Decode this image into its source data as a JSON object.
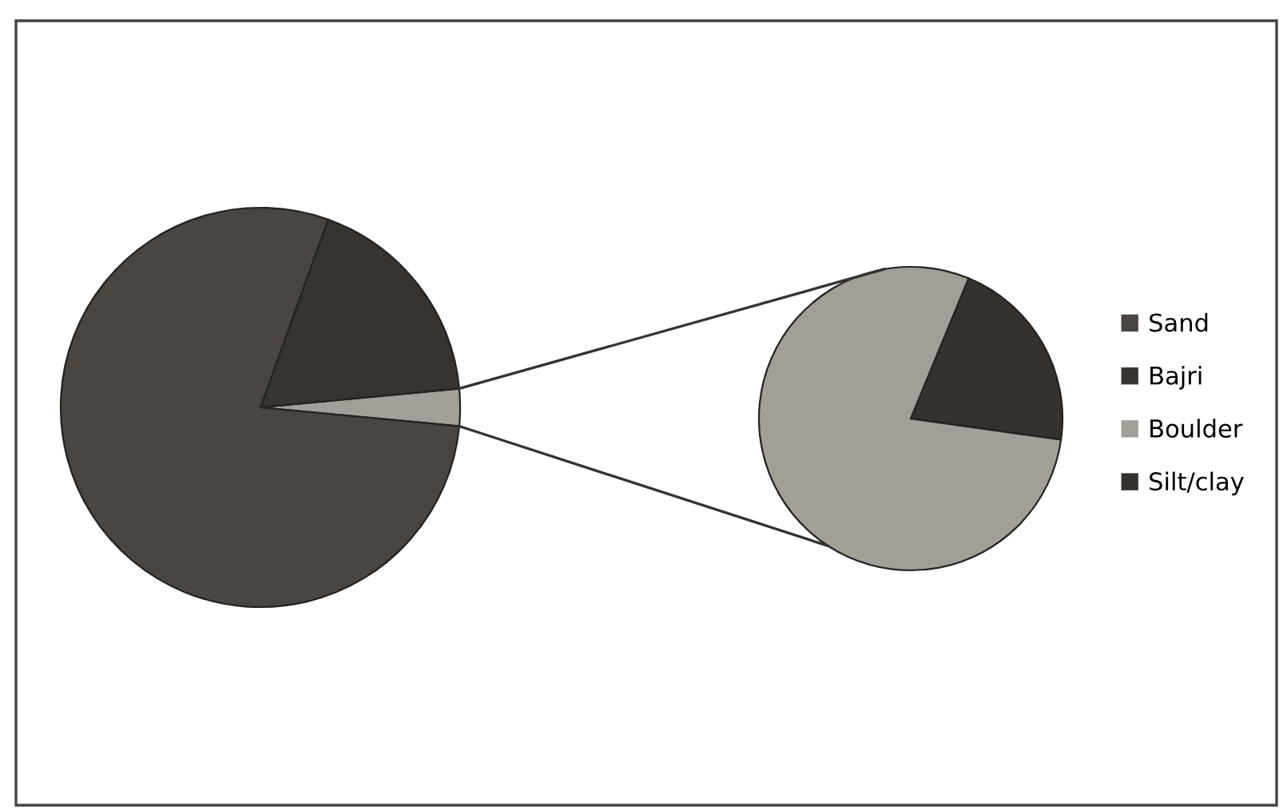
{
  "chart_data": [
    {
      "type": "pie",
      "categories": [
        "Sand",
        "Bajri",
        null
      ],
      "values": [
        79,
        18,
        3
      ],
      "colors": [
        "#4a4541",
        "#37332f",
        "#a29e98"
      ],
      "legend": "right"
    },
    {
      "type": "pie",
      "categories": [
        "Boulder",
        "Silt/clay"
      ],
      "values": [
        79,
        21
      ],
      "colors": [
        "#a29e98",
        "#35312d"
      ]
    }
  ]
}
